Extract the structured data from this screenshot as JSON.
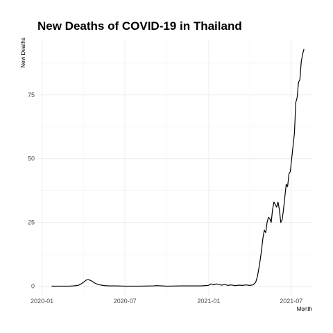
{
  "chart_data": {
    "type": "line",
    "title": "New Deaths of COVID-19 in Thailand",
    "xlabel": "Month",
    "ylabel": "New Deaths",
    "x_ticks": [
      "2020-01",
      "2020-07",
      "2021-01",
      "2021-07"
    ],
    "y_ticks": [
      0,
      25,
      50,
      75
    ],
    "ylim": [
      -3.4,
      97
    ],
    "xlim": [
      "2019-12-22",
      "2021-08-16"
    ],
    "grid": true,
    "legend": "none",
    "series": [
      {
        "x": [
          "2020-01-22",
          "2020-02-15",
          "2020-03-01",
          "2020-03-10",
          "2020-03-20",
          "2020-03-28",
          "2020-04-03",
          "2020-04-08",
          "2020-04-12",
          "2020-04-18",
          "2020-04-25",
          "2020-05-02",
          "2020-05-10",
          "2020-05-18",
          "2020-05-28",
          "2020-06-10",
          "2020-07-01",
          "2020-08-01",
          "2020-09-01",
          "2020-09-10",
          "2020-09-20",
          "2020-10-01",
          "2020-11-01",
          "2020-11-20",
          "2020-12-01",
          "2020-12-15",
          "2020-12-31",
          "2021-01-06",
          "2021-01-12",
          "2021-01-18",
          "2021-01-24",
          "2021-01-30",
          "2021-02-05",
          "2021-02-12",
          "2021-02-20",
          "2021-02-28",
          "2021-03-08",
          "2021-03-16",
          "2021-03-24",
          "2021-04-01",
          "2021-04-08",
          "2021-04-14",
          "2021-04-18",
          "2021-04-22",
          "2021-04-26",
          "2021-04-30",
          "2021-05-03",
          "2021-05-06",
          "2021-05-09",
          "2021-05-12",
          "2021-05-15",
          "2021-05-18",
          "2021-05-21",
          "2021-05-24",
          "2021-05-27",
          "2021-05-30",
          "2021-06-02",
          "2021-06-05",
          "2021-06-08",
          "2021-06-11",
          "2021-06-14",
          "2021-06-17",
          "2021-06-20",
          "2021-06-23",
          "2021-06-26",
          "2021-06-29",
          "2021-07-02",
          "2021-07-05",
          "2021-07-08",
          "2021-07-11",
          "2021-07-14",
          "2021-07-17",
          "2021-07-20",
          "2021-07-23",
          "2021-07-26",
          "2021-07-29"
        ],
        "y": [
          0,
          0,
          0,
          0.1,
          0.3,
          1.0,
          1.8,
          2.5,
          2.6,
          2.1,
          1.3,
          0.7,
          0.4,
          0.2,
          0.1,
          0.1,
          0,
          0,
          0.1,
          0.2,
          0.1,
          0,
          0.1,
          0.1,
          0.1,
          0.1,
          0.3,
          0.9,
          0.5,
          0.9,
          0.6,
          0.4,
          0.7,
          0.3,
          0.5,
          0.2,
          0.4,
          0.3,
          0.5,
          0.3,
          0.5,
          1.5,
          4.0,
          8.0,
          13.0,
          19.0,
          22.0,
          21.0,
          25.0,
          27.0,
          26.5,
          25.0,
          30.0,
          33.0,
          32.0,
          31.0,
          33.0,
          30.0,
          25.0,
          26.0,
          30.0,
          35.0,
          40.0,
          39.0,
          44.0,
          45.0,
          50.0,
          55.0,
          60.0,
          72.0,
          74.0,
          80.0,
          81.0,
          88.0,
          91.0,
          93.0
        ]
      }
    ]
  }
}
